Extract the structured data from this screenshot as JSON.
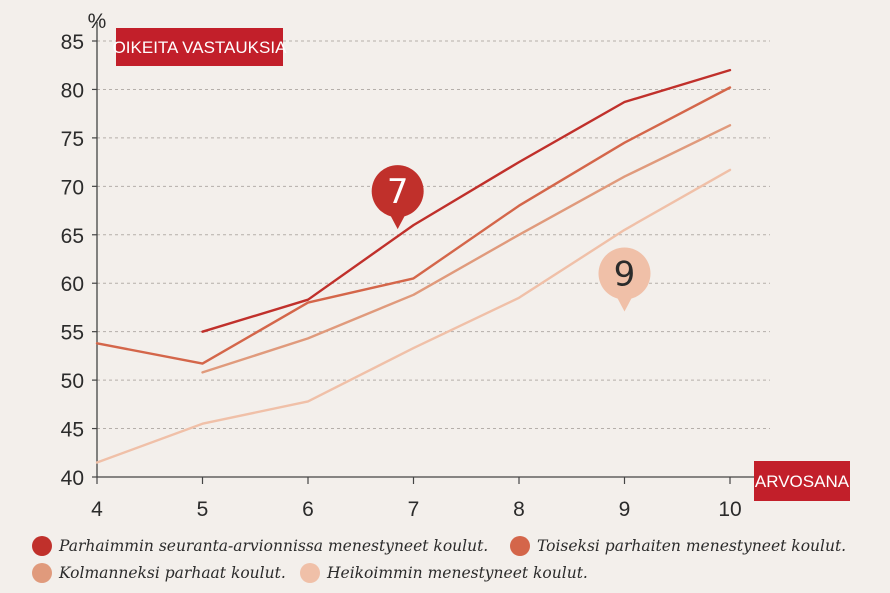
{
  "chart_data": {
    "type": "line",
    "y_unit": "%",
    "ylabel": "OIKEITA VASTAUKSIA",
    "xlabel": "ARVOSANA",
    "x_ticks": [
      4,
      5,
      6,
      7,
      8,
      9,
      10
    ],
    "y_ticks": [
      40,
      45,
      50,
      55,
      60,
      65,
      70,
      75,
      80,
      85
    ],
    "xlim": [
      4,
      10
    ],
    "ylim": [
      40,
      85
    ],
    "grid": "horizontal dashed",
    "legend_position": "bottom",
    "series": [
      {
        "name": "Parhaimmin seuranta-arvionnissa menestyneet koulut.",
        "color": "#c0302b",
        "x": [
          5,
          6,
          7,
          8,
          9,
          10
        ],
        "y": [
          55.0,
          58.3,
          66.0,
          72.5,
          78.7,
          82.0
        ]
      },
      {
        "name": "Toiseksi parhaiten menestyneet koulut.",
        "color": "#d4664a",
        "x": [
          4,
          5,
          6,
          7,
          8,
          9,
          10
        ],
        "y": [
          53.8,
          51.7,
          58.0,
          60.5,
          68.0,
          74.5,
          80.2
        ]
      },
      {
        "name": "Kolmanneksi parhaat koulut.",
        "color": "#e09a7c",
        "x": [
          5,
          6,
          7,
          8,
          9,
          10
        ],
        "y": [
          50.8,
          54.3,
          58.8,
          65.0,
          71.0,
          76.3
        ]
      },
      {
        "name": "Heikoimmin menestyneet koulut.",
        "color": "#f0c0a8",
        "x": [
          4,
          5,
          6,
          7,
          8,
          9,
          10
        ],
        "y": [
          41.5,
          45.5,
          47.8,
          53.3,
          58.5,
          65.5,
          71.7
        ]
      }
    ],
    "annotations": [
      {
        "text": "7",
        "x": 6.85,
        "y": 69.5,
        "style": "pin",
        "color": "#c0302b",
        "text_color": "#ffffff"
      },
      {
        "text": "9",
        "x": 9.0,
        "y": 61.0,
        "style": "pin",
        "color": "#f0c0a8",
        "text_color": "#2b2b2b"
      }
    ]
  },
  "legend": [
    {
      "label": "Parhaimmin seuranta-arvionnissa menestyneet koulut.",
      "color": "#c0302b"
    },
    {
      "label": "Toiseksi parhaiten menestyneet koulut.",
      "color": "#d4664a"
    },
    {
      "label": "Kolmanneksi parhaat koulut.",
      "color": "#e09a7c"
    },
    {
      "label": "Heikoimmin menestyneet koulut.",
      "color": "#f0c0a8"
    }
  ]
}
